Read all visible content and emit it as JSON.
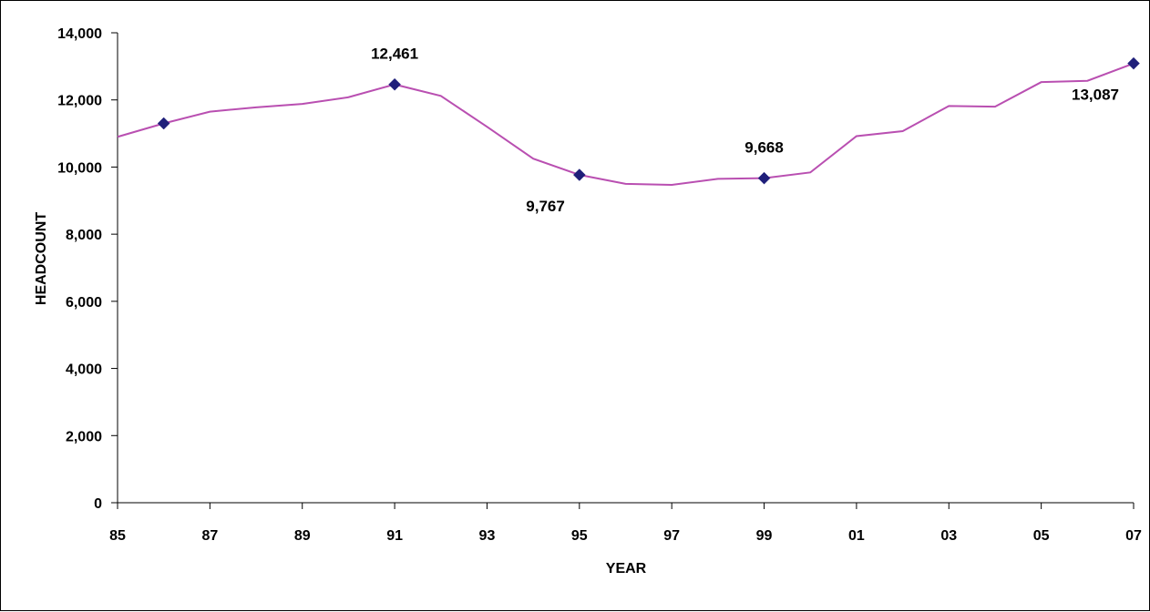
{
  "chart_data": {
    "type": "line",
    "title": "",
    "xlabel": "YEAR",
    "ylabel": "HEADCOUNT",
    "x_tick_labels": [
      "85",
      "87",
      "89",
      "91",
      "93",
      "95",
      "97",
      "99",
      "01",
      "03",
      "05",
      "07"
    ],
    "y_tick_labels": [
      "0",
      "2,000",
      "4,000",
      "6,000",
      "8,000",
      "10,000",
      "12,000",
      "14,000"
    ],
    "ylim": [
      0,
      14000
    ],
    "grid": false,
    "legend": "none",
    "line_color": "#B94FB1",
    "marker_color": "#1F1F7A",
    "series": [
      {
        "x": [
          "85",
          "86",
          "87",
          "88",
          "89",
          "90",
          "91",
          "92",
          "93",
          "94",
          "95",
          "96",
          "97",
          "98",
          "99",
          "00",
          "01",
          "02",
          "03",
          "04",
          "05",
          "06",
          "07"
        ],
        "values": [
          10900,
          11300,
          11650,
          11780,
          11880,
          12080,
          12461,
          12120,
          11200,
          10250,
          9767,
          9500,
          9470,
          9650,
          9668,
          9840,
          10920,
          11070,
          11820,
          11800,
          12530,
          12570,
          13087
        ]
      }
    ],
    "markers": [
      {
        "x": "86",
        "value": 11300
      },
      {
        "x": "91",
        "value": 12461
      },
      {
        "x": "95",
        "value": 9767
      },
      {
        "x": "99",
        "value": 9668
      },
      {
        "x": "07",
        "value": 13087
      }
    ],
    "annotations": [
      {
        "text": "12,461",
        "x": "91",
        "value": 12461,
        "placement": "above"
      },
      {
        "text": "9,767",
        "x": "95",
        "value": 9767,
        "placement": "below-left"
      },
      {
        "text": "9,668",
        "x": "99",
        "value": 9668,
        "placement": "above"
      },
      {
        "text": "13,087",
        "x": "07",
        "value": 13087,
        "placement": "below-left"
      }
    ]
  }
}
